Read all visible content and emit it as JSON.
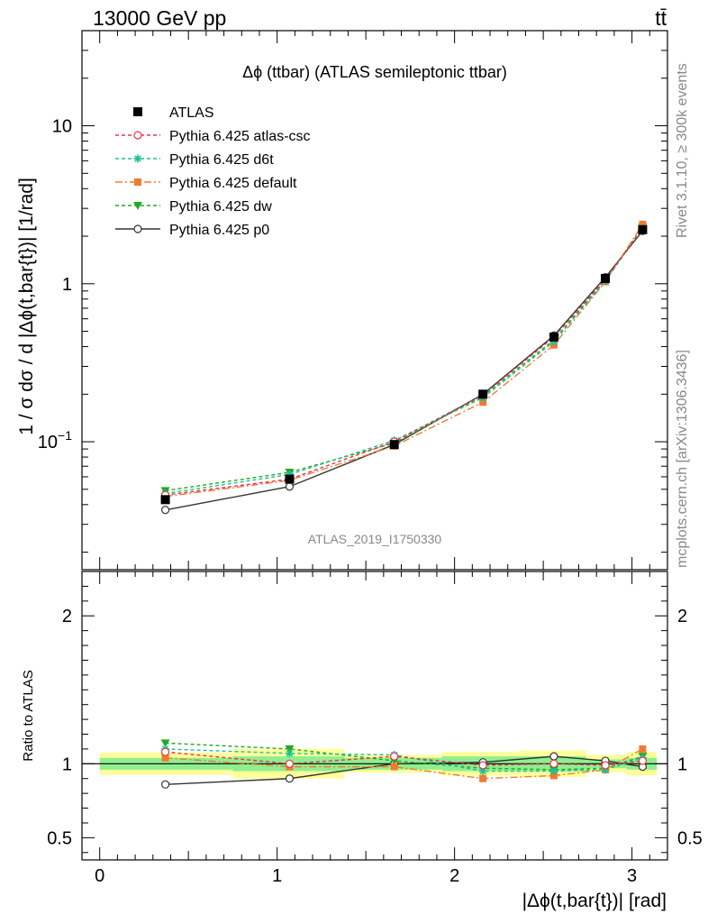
{
  "header": {
    "energy": "13000 GeV pp",
    "process": "tt̄"
  },
  "side": {
    "rivet": "Rivet 3.1.10, ≥ 300k events",
    "mcplots": "mcplots.cern.ch [arXiv:1306.3436]"
  },
  "colors": {
    "ATLAS": "#000000",
    "atlas_csc": "#e8334a",
    "d6t": "#1fbf9a",
    "default": "#f07b2f",
    "dw": "#22aa22",
    "p0": "#333333",
    "band_inner": "#90ee90",
    "band_outer": "#ffff99"
  },
  "chart_data": [
    {
      "type": "line",
      "panel": "main",
      "title": "Δϕ (ttbar) (ATLAS semileptonic ttbar)",
      "ylabel": "1 / σ dσ / d |Δϕ(t,bar{t})| [1/rad]",
      "watermark": "ATLAS_2019_I1750330",
      "yscale": "log",
      "xlim": [
        -0.1,
        3.2
      ],
      "ylim": [
        0.0155,
        40
      ],
      "yticks": [
        {
          "v": 0.1,
          "b": "10",
          "e": "−1"
        },
        {
          "v": 1,
          "b": "1",
          "e": ""
        },
        {
          "v": 10,
          "b": "10",
          "e": ""
        }
      ],
      "x": [
        0.37,
        1.07,
        1.66,
        2.16,
        2.56,
        2.85,
        3.06
      ],
      "series": [
        {
          "name": "ATLAS",
          "key": "ATLAS",
          "marker": "square",
          "values": [
            0.043,
            0.058,
            0.096,
            0.2,
            0.46,
            1.08,
            2.2
          ]
        },
        {
          "name": "Pythia 6.425 atlas-csc",
          "key": "atlas_csc",
          "marker": "circle-open",
          "dash": "4,3",
          "values": [
            0.046,
            0.058,
            0.1,
            0.198,
            0.46,
            1.07,
            2.22
          ]
        },
        {
          "name": "Pythia 6.425 d6t",
          "key": "d6t",
          "marker": "star",
          "dash": "4,3",
          "values": [
            0.047,
            0.062,
            0.102,
            0.19,
            0.43,
            1.04,
            2.25
          ]
        },
        {
          "name": "Pythia 6.425 default",
          "key": "default",
          "marker": "square-small",
          "dash": "8,3,2,3",
          "values": [
            0.045,
            0.057,
            0.094,
            0.178,
            0.41,
            1.03,
            2.38
          ]
        },
        {
          "name": "Pythia 6.425 dw",
          "key": "dw",
          "marker": "triangle-down",
          "dash": "4,3",
          "values": [
            0.049,
            0.064,
            0.098,
            0.195,
            0.44,
            1.06,
            2.28
          ]
        },
        {
          "name": "Pythia 6.425 p0",
          "key": "p0",
          "marker": "circle-open",
          "dash": "",
          "values": [
            0.037,
            0.052,
            0.096,
            0.2,
            0.47,
            1.1,
            2.16
          ]
        }
      ]
    },
    {
      "type": "line",
      "panel": "ratio",
      "ylabel": "Ratio to ATLAS",
      "xlabel": "|Δϕ(t,bar{t})| [rad]",
      "xlim": [
        -0.1,
        3.2
      ],
      "ylim": [
        0.35,
        2.3
      ],
      "xticks": [
        0,
        1,
        2,
        3
      ],
      "yticks": [
        0.5,
        1,
        2
      ],
      "bins": [
        {
          "x0": 0.0,
          "x1": 0.75,
          "inner": 0.04,
          "outer": 0.075
        },
        {
          "x0": 0.75,
          "x1": 1.38,
          "inner": 0.05,
          "outer": 0.1
        },
        {
          "x0": 1.38,
          "x1": 1.93,
          "inner": 0.04,
          "outer": 0.06
        },
        {
          "x0": 1.93,
          "x1": 2.37,
          "inner": 0.05,
          "outer": 0.08
        },
        {
          "x0": 2.37,
          "x1": 2.74,
          "inner": 0.05,
          "outer": 0.09
        },
        {
          "x0": 2.74,
          "x1": 2.97,
          "inner": 0.03,
          "outer": 0.06
        },
        {
          "x0": 2.97,
          "x1": 3.14,
          "inner": 0.04,
          "outer": 0.08
        }
      ],
      "x": [
        0.37,
        1.07,
        1.66,
        2.16,
        2.56,
        2.85,
        3.06
      ],
      "series": [
        {
          "name": "Pythia 6.425 atlas-csc",
          "key": "atlas_csc",
          "marker": "circle-open",
          "dash": "4,3",
          "values": [
            1.08,
            1.0,
            1.05,
            0.99,
            1.0,
            0.99,
            1.02
          ]
        },
        {
          "name": "Pythia 6.425 d6t",
          "key": "d6t",
          "marker": "star",
          "dash": "4,3",
          "values": [
            1.1,
            1.07,
            1.06,
            0.95,
            0.95,
            0.96,
            1.04
          ]
        },
        {
          "name": "Pythia 6.425 default",
          "key": "default",
          "marker": "square-small",
          "dash": "8,3,2,3",
          "values": [
            1.04,
            0.98,
            0.98,
            0.9,
            0.92,
            0.96,
            1.1
          ]
        },
        {
          "name": "Pythia 6.425 dw",
          "key": "dw",
          "marker": "triangle-down",
          "dash": "4,3",
          "values": [
            1.14,
            1.1,
            1.02,
            0.97,
            0.96,
            0.97,
            1.05
          ]
        },
        {
          "name": "Pythia 6.425 p0",
          "key": "p0",
          "marker": "circle-open",
          "dash": "",
          "values": [
            0.86,
            0.9,
            1.0,
            1.01,
            1.05,
            1.02,
            0.98
          ]
        }
      ]
    }
  ]
}
